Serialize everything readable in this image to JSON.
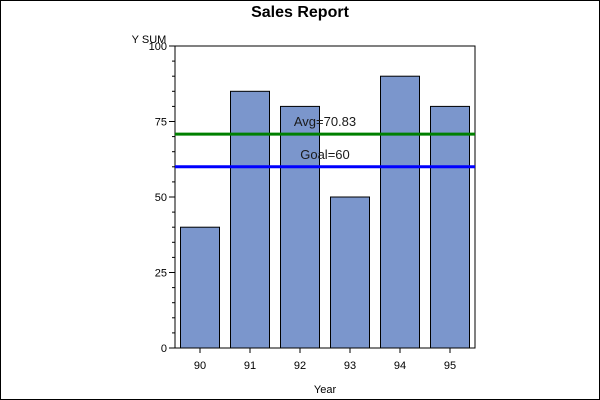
{
  "chart_data": {
    "type": "bar",
    "title": "Sales Report",
    "xlabel": "Year",
    "ylabel": "Y SUM",
    "categories": [
      "90",
      "91",
      "92",
      "93",
      "94",
      "95"
    ],
    "values": [
      40,
      85,
      80,
      50,
      90,
      80
    ],
    "ylim": [
      0,
      100
    ],
    "yticks": [
      "0",
      "25",
      "50",
      "75",
      "100"
    ],
    "grid": false,
    "legend": "none",
    "bar_color": "#7b96cc",
    "reference_lines": [
      {
        "label": "Avg=70.83",
        "value": 70.83,
        "color": "#008000"
      },
      {
        "label": "Goal=60",
        "value": 60,
        "color": "#0000ff"
      }
    ]
  }
}
